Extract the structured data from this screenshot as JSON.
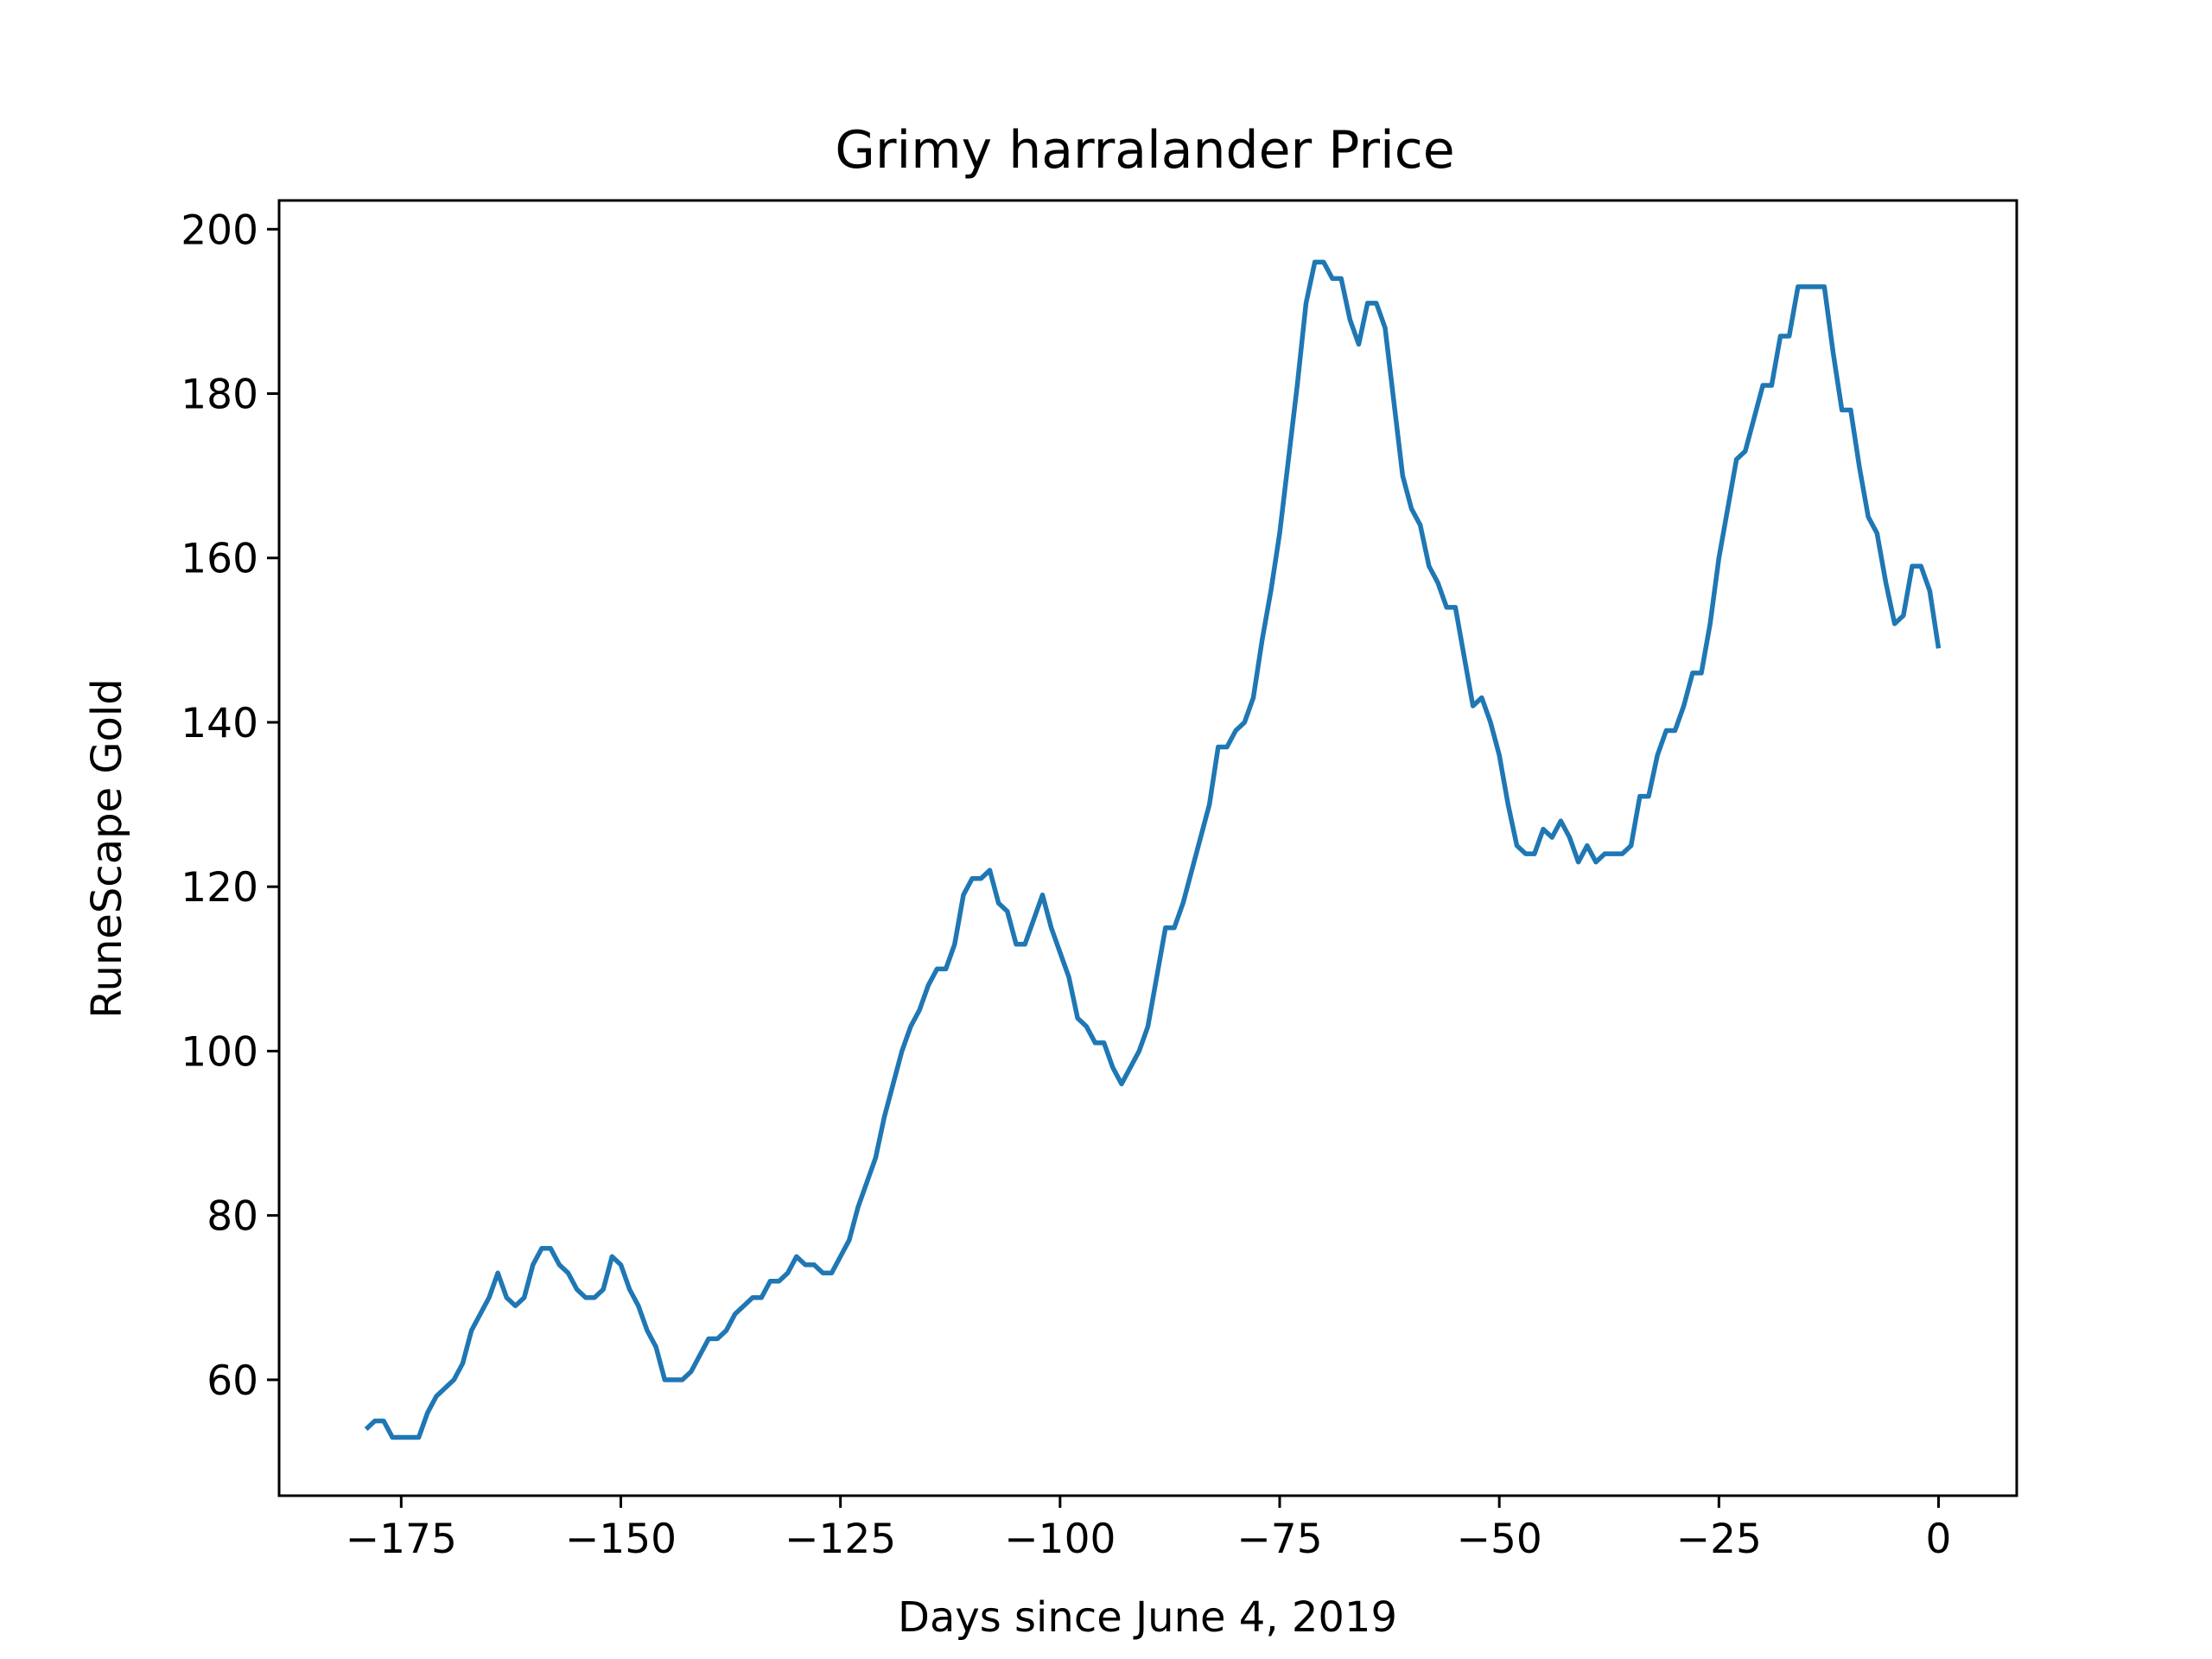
{
  "chart_data": {
    "type": "line",
    "title": "Grimy harralander Price",
    "xlabel": "Days since June 4, 2019",
    "ylabel": "RuneScape Gold",
    "xlim": [
      -188.9,
      8.9
    ],
    "ylim": [
      45.9,
      203.5
    ],
    "xticks": [
      -175,
      -150,
      -125,
      -100,
      -75,
      -50,
      -25,
      0
    ],
    "xtick_labels": [
      "−175",
      "−150",
      "−125",
      "−100",
      "−75",
      "−50",
      "−25",
      "0"
    ],
    "yticks": [
      60,
      80,
      100,
      120,
      140,
      160,
      180,
      200
    ],
    "ytick_labels": [
      "60",
      "80",
      "100",
      "120",
      "140",
      "160",
      "180",
      "200"
    ],
    "grid": false,
    "legend": "none",
    "series": [
      {
        "color": "#1f77b4",
        "x": [
          -179,
          -178,
          -177,
          -176,
          -175,
          -174,
          -173,
          -172,
          -171,
          -170,
          -169,
          -168,
          -167,
          -166,
          -165,
          -164,
          -163,
          -162,
          -161,
          -160,
          -159,
          -158,
          -157,
          -156,
          -155,
          -154,
          -153,
          -152,
          -151,
          -150,
          -149,
          -148,
          -147,
          -146,
          -145,
          -144,
          -143,
          -142,
          -141,
          -140,
          -139,
          -138,
          -137,
          -136,
          -135,
          -134,
          -133,
          -132,
          -131,
          -130,
          -129,
          -128,
          -127,
          -126,
          -125,
          -124,
          -123,
          -122,
          -121,
          -120,
          -119,
          -118,
          -117,
          -116,
          -115,
          -114,
          -113,
          -112,
          -111,
          -110,
          -109,
          -108,
          -107,
          -106,
          -105,
          -104,
          -103,
          -102,
          -101,
          -100,
          -99,
          -98,
          -97,
          -96,
          -95,
          -94,
          -93,
          -92,
          -91,
          -90,
          -89,
          -88,
          -87,
          -86,
          -85,
          -84,
          -83,
          -82,
          -81,
          -80,
          -79,
          -78,
          -77,
          -76,
          -75,
          -74,
          -73,
          -72,
          -71,
          -70,
          -69,
          -68,
          -67,
          -66,
          -65,
          -64,
          -63,
          -62,
          -61,
          -60,
          -59,
          -58,
          -57,
          -56,
          -55,
          -54,
          -53,
          -52,
          -51,
          -50,
          -49,
          -48,
          -47,
          -46,
          -45,
          -44,
          -43,
          -42,
          -41,
          -40,
          -39,
          -38,
          -37,
          -36,
          -35,
          -34,
          -33,
          -32,
          -31,
          -30,
          -29,
          -28,
          -27,
          -26,
          -25,
          -24,
          -23,
          -22,
          -21,
          -20,
          -19,
          -18,
          -17,
          -16,
          -15,
          -14,
          -13,
          -12,
          -11,
          -10,
          -9,
          -8,
          -7,
          -6,
          -5,
          -4,
          -3,
          -2,
          -1,
          0
        ],
        "values": [
          54,
          55,
          55,
          53,
          53,
          53,
          53,
          56,
          58,
          59,
          60,
          62,
          66,
          68,
          70,
          73,
          70,
          69,
          70,
          74,
          76,
          76,
          74,
          73,
          71,
          70,
          70,
          71,
          75,
          74,
          71,
          69,
          66,
          64,
          60,
          60,
          60,
          61,
          63,
          65,
          65,
          66,
          68,
          69,
          70,
          70,
          72,
          72,
          73,
          75,
          74,
          74,
          73,
          73,
          75,
          77,
          81,
          84,
          87,
          92,
          96,
          100,
          103,
          105,
          108,
          110,
          110,
          113,
          119,
          121,
          121,
          122,
          118,
          117,
          113,
          113,
          116,
          119,
          115,
          112,
          109,
          104,
          103,
          101,
          101,
          98,
          96,
          98,
          100,
          103,
          109,
          115,
          115,
          118,
          122,
          126,
          130,
          137,
          137,
          139,
          140,
          143,
          150,
          156,
          163,
          172,
          181,
          191,
          196,
          196,
          194,
          194,
          189,
          186,
          191,
          191,
          188,
          179,
          170,
          166,
          164,
          159,
          157,
          154,
          154,
          148,
          142,
          143,
          140,
          136,
          130,
          125,
          124,
          124,
          127,
          126,
          128,
          126,
          123,
          125,
          123,
          124,
          124,
          124,
          125,
          131,
          131,
          136,
          139,
          139,
          142,
          146,
          146,
          152,
          160,
          166,
          172,
          173,
          177,
          181,
          181,
          187,
          187,
          193,
          193,
          193,
          193,
          185,
          178,
          178,
          171,
          165,
          163,
          157,
          152,
          153,
          159,
          159,
          156,
          149
        ]
      }
    ]
  }
}
